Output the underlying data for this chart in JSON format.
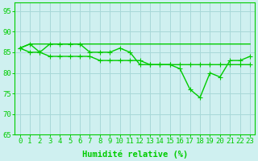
{
  "xlabel": "Humidité relative (%)",
  "background_color": "#cff0f0",
  "grid_color": "#a8d8d8",
  "line_color": "#00cc00",
  "xlim": [
    -0.5,
    23.5
  ],
  "ylim": [
    65,
    97
  ],
  "yticks": [
    65,
    70,
    75,
    80,
    85,
    90,
    95
  ],
  "xticks": [
    0,
    1,
    2,
    3,
    4,
    5,
    6,
    7,
    8,
    9,
    10,
    11,
    12,
    13,
    14,
    15,
    16,
    17,
    18,
    19,
    20,
    21,
    22,
    23
  ],
  "line1": [
    86,
    87,
    85,
    87,
    87,
    87,
    87,
    85,
    85,
    85,
    86,
    85,
    82,
    82,
    82,
    82,
    81,
    76,
    74,
    80,
    79,
    83,
    83,
    84
  ],
  "line2": [
    86,
    85,
    85,
    84,
    84,
    84,
    84,
    84,
    83,
    83,
    83,
    83,
    83,
    82,
    82,
    82,
    82,
    82,
    82,
    82,
    82,
    82,
    82,
    82
  ],
  "line3": [
    86,
    87,
    87,
    87,
    87,
    87,
    87,
    87,
    87,
    87,
    87,
    87,
    87,
    87,
    87,
    87,
    87,
    87,
    87,
    87,
    87,
    87,
    87,
    87
  ],
  "markersize": 3,
  "linewidth": 1.0,
  "tick_fontsize": 6.5,
  "xlabel_fontsize": 7.5
}
